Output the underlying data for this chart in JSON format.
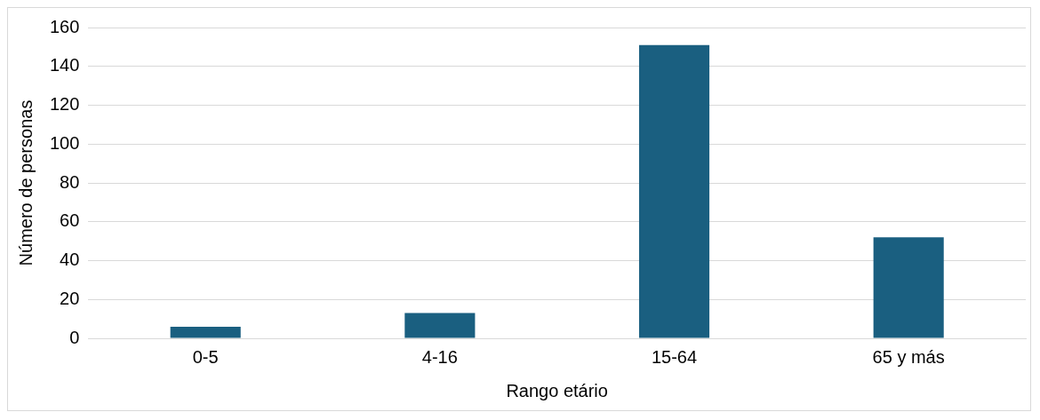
{
  "chart_data": {
    "type": "bar",
    "xlabel": "Rango etário",
    "ylabel": "Número de personas",
    "categories": [
      "0-5",
      "4-16",
      "15-64",
      "65 y más"
    ],
    "values": [
      6,
      13,
      151,
      52
    ],
    "color": "#1a5f80",
    "ylim": [
      0,
      160
    ],
    "yticks": [
      0,
      20,
      40,
      60,
      80,
      100,
      120,
      140,
      160
    ],
    "grid": "y",
    "legend": false
  }
}
